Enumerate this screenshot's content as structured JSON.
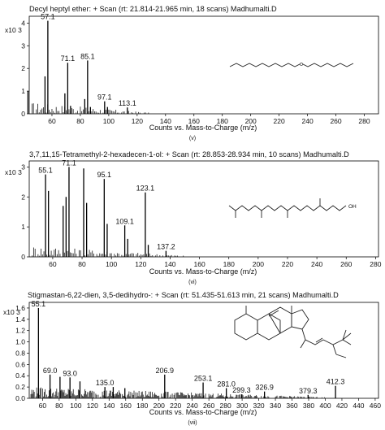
{
  "chart_data": [
    {
      "type": "bar",
      "title": "Decyl heptyl ether: + Scan (rt: 21.814-21.965 min, 18 scans) Madhumalti.D",
      "xlabel": "Counts vs. Mass-to-Charge (m/z)",
      "y_multiplier": "x10 3",
      "xlim": [
        44,
        290
      ],
      "ylim": [
        0,
        4.3
      ],
      "x_ticks": [
        60,
        80,
        100,
        120,
        140,
        160,
        180,
        200,
        220,
        240,
        260,
        280
      ],
      "y_ticks": [
        0,
        1,
        2,
        3,
        4
      ],
      "caption": "(v)",
      "peaks": [
        {
          "mz": 43.1,
          "value": 1.0
        },
        {
          "mz": 55.1,
          "value": 1.65
        },
        {
          "mz": 57.1,
          "value": 4.1,
          "label": "57.1"
        },
        {
          "mz": 69.1,
          "value": 0.9
        },
        {
          "mz": 71.1,
          "value": 2.25,
          "label": "71.1"
        },
        {
          "mz": 73.1,
          "value": 0.35
        },
        {
          "mz": 83.1,
          "value": 0.65
        },
        {
          "mz": 85.1,
          "value": 2.35,
          "label": "85.1"
        },
        {
          "mz": 87.1,
          "value": 0.3
        },
        {
          "mz": 97.1,
          "value": 0.55,
          "label": "97.1"
        },
        {
          "mz": 99.1,
          "value": 0.3
        },
        {
          "mz": 113.1,
          "value": 0.28,
          "label": "113.1"
        }
      ]
    },
    {
      "type": "bar",
      "title": "3,7,11,15-Tetramethyl-2-hexadecen-1-ol: + Scan (rt: 28.853-28.934 min, 10 scans) Madhumalti.D",
      "xlabel": "Counts vs. Mass-to-Charge (m/z)",
      "y_multiplier": "x10 3",
      "xlim": [
        44,
        282
      ],
      "ylim": [
        0,
        3.2
      ],
      "x_ticks": [
        60,
        80,
        100,
        120,
        140,
        160,
        180,
        200,
        220,
        240,
        260,
        280
      ],
      "y_ticks": [
        0,
        1,
        2,
        3
      ],
      "caption": "(vi)",
      "molecule_label": "OH",
      "peaks": [
        {
          "mz": 55.1,
          "value": 2.75,
          "label": "55.1"
        },
        {
          "mz": 57.1,
          "value": 2.2
        },
        {
          "mz": 67.1,
          "value": 1.7
        },
        {
          "mz": 69.1,
          "value": 2.0
        },
        {
          "mz": 71.1,
          "value": 3.0,
          "label": "71.1"
        },
        {
          "mz": 81.1,
          "value": 2.95
        },
        {
          "mz": 83.1,
          "value": 1.8
        },
        {
          "mz": 95.1,
          "value": 2.6,
          "label": "95.1"
        },
        {
          "mz": 97.1,
          "value": 1.1
        },
        {
          "mz": 109.1,
          "value": 1.05,
          "label": "109.1"
        },
        {
          "mz": 111.1,
          "value": 0.6
        },
        {
          "mz": 123.1,
          "value": 2.15,
          "label": "123.1"
        },
        {
          "mz": 125.1,
          "value": 0.4
        },
        {
          "mz": 137.2,
          "value": 0.2,
          "label": "137.2"
        }
      ]
    },
    {
      "type": "bar",
      "title": "Stigmastan-6,22-dien, 3,5-dedihydro-: + Scan (rt: 51.435-51.613 min, 21 scans) Madhumalti.D",
      "xlabel": "Counts vs. Mass-to-Charge (m/z)",
      "y_multiplier": "x10 3",
      "xlim": [
        44,
        464
      ],
      "ylim": [
        0,
        1.7
      ],
      "x_ticks": [
        60,
        80,
        100,
        120,
        140,
        160,
        180,
        200,
        220,
        240,
        260,
        280,
        300,
        320,
        340,
        360,
        380,
        400,
        420,
        440,
        460
      ],
      "y_ticks": [
        0,
        0.2,
        0.4,
        0.6,
        0.8,
        1.0,
        1.2,
        1.4,
        1.6
      ],
      "caption": "(vii)",
      "peaks": [
        {
          "mz": 55.1,
          "value": 1.6,
          "label": "55.1"
        },
        {
          "mz": 69.0,
          "value": 0.42,
          "label": "69.0"
        },
        {
          "mz": 81.0,
          "value": 0.38
        },
        {
          "mz": 93.0,
          "value": 0.37,
          "label": "93.0"
        },
        {
          "mz": 105.0,
          "value": 0.3
        },
        {
          "mz": 135.0,
          "value": 0.2,
          "label": "135.0"
        },
        {
          "mz": 145.0,
          "value": 0.2
        },
        {
          "mz": 159.0,
          "value": 0.18
        },
        {
          "mz": 206.9,
          "value": 0.42,
          "label": "206.9"
        },
        {
          "mz": 253.1,
          "value": 0.28,
          "label": "253.1"
        },
        {
          "mz": 281.0,
          "value": 0.18,
          "label": "281.0"
        },
        {
          "mz": 299.3,
          "value": 0.07,
          "label": "299.3"
        },
        {
          "mz": 326.9,
          "value": 0.12,
          "label": "326.9"
        },
        {
          "mz": 379.3,
          "value": 0.06,
          "label": "379.3"
        },
        {
          "mz": 412.3,
          "value": 0.22,
          "label": "412.3"
        }
      ]
    }
  ]
}
